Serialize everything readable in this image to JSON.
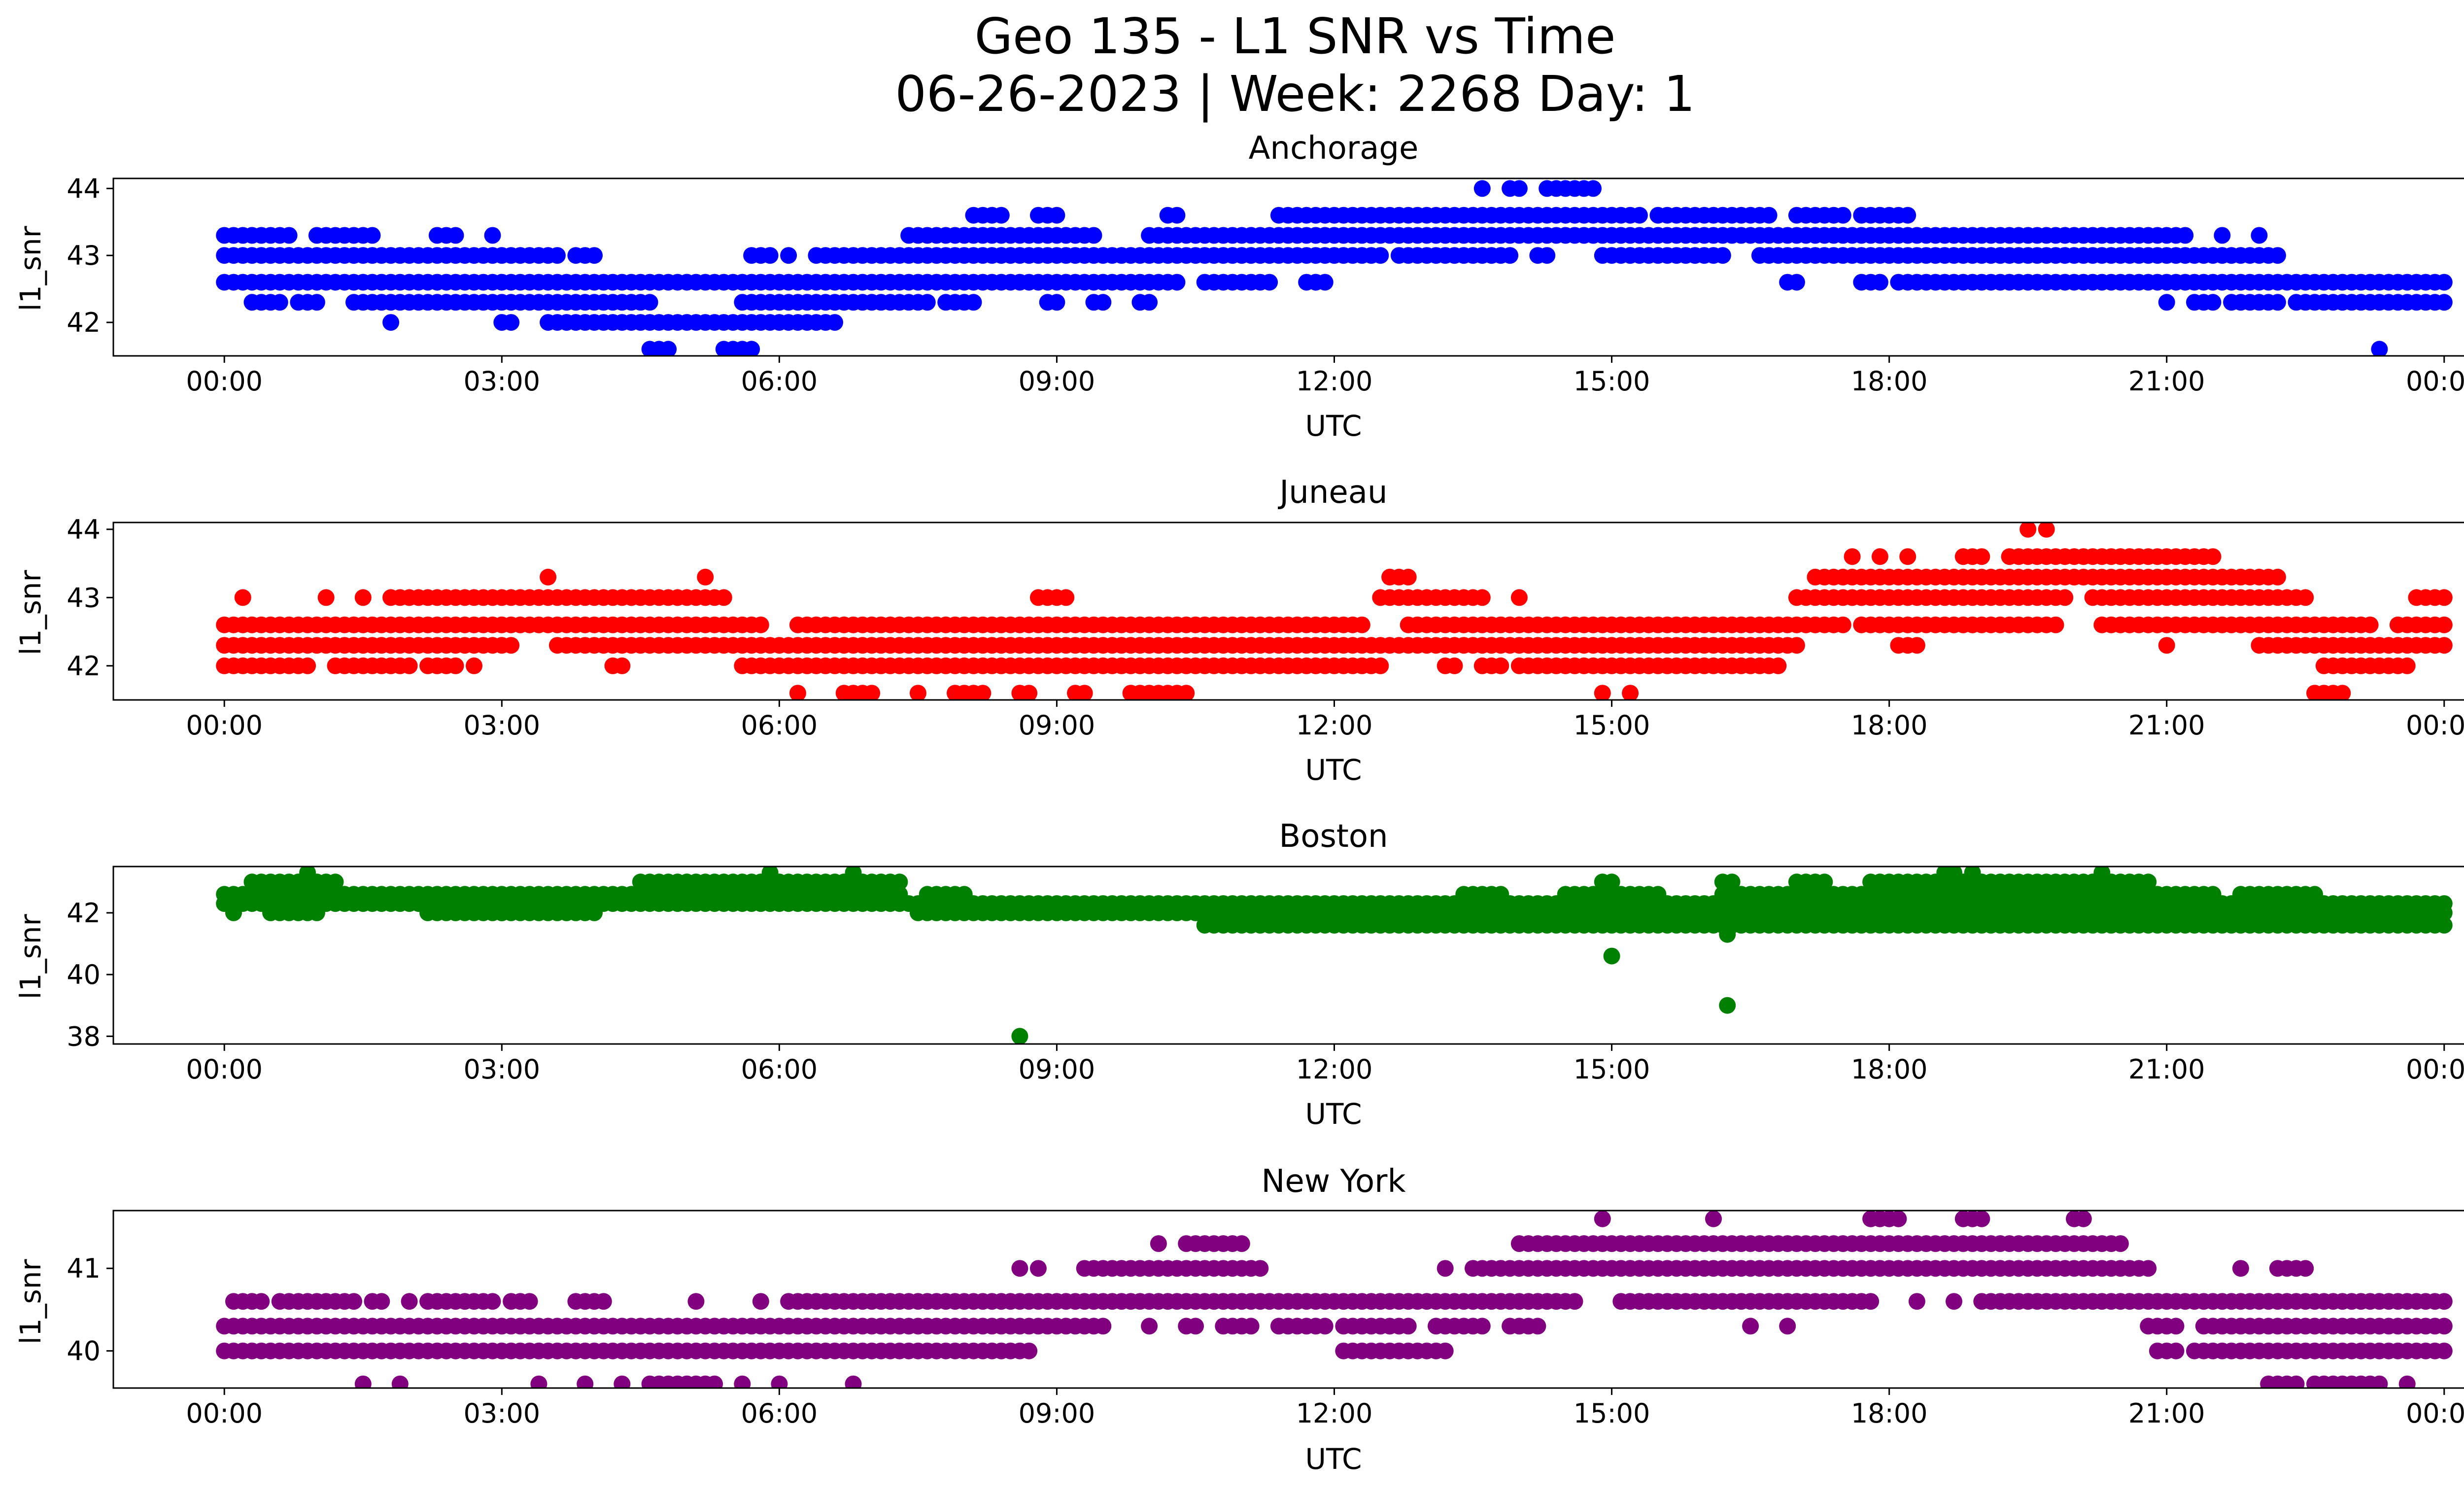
{
  "figure": {
    "title_line1": "Geo 135 - L1 SNR vs Time",
    "title_line2": "06-26-2023 | Week: 2268 Day: 1"
  },
  "chart_data": [
    {
      "type": "scatter",
      "title": "Anchorage",
      "xlabel": "UTC",
      "ylabel": "l1_snr",
      "color": "#0000ff",
      "x_ticks": [
        "00:00",
        "03:00",
        "06:00",
        "09:00",
        "12:00",
        "15:00",
        "18:00",
        "21:00",
        "00:00"
      ],
      "xlim_hours": [
        -1.2,
        25.2
      ],
      "y_ticks": [
        42,
        43,
        44
      ],
      "ylim": [
        41.5,
        44.15
      ],
      "levels": [
        {
          "y": 41.6,
          "ranges": [
            [
              4.6,
              4.8
            ],
            [
              5.4,
              5.7
            ],
            [
              23.3,
              23.3
            ]
          ]
        },
        {
          "y": 42.0,
          "ranges": [
            [
              1.8,
              1.8
            ],
            [
              3.0,
              3.1
            ],
            [
              3.5,
              6.6
            ]
          ]
        },
        {
          "y": 42.3,
          "ranges": [
            [
              0.3,
              0.6
            ],
            [
              0.8,
              1.0
            ],
            [
              1.4,
              4.6
            ],
            [
              5.6,
              7.6
            ],
            [
              7.8,
              8.1
            ],
            [
              8.9,
              9.0
            ],
            [
              9.4,
              9.5
            ],
            [
              9.9,
              10.0
            ],
            [
              21.0,
              21.0
            ],
            [
              21.3,
              21.5
            ],
            [
              21.7,
              22.2
            ],
            [
              22.4,
              24.0
            ]
          ]
        },
        {
          "y": 42.6,
          "ranges": [
            [
              0.0,
              10.3
            ],
            [
              10.6,
              11.3
            ],
            [
              11.7,
              11.9
            ],
            [
              16.9,
              17.0
            ],
            [
              17.7,
              17.9
            ],
            [
              18.1,
              24.0
            ]
          ]
        },
        {
          "y": 43.0,
          "ranges": [
            [
              0.0,
              3.6
            ],
            [
              3.8,
              4.0
            ],
            [
              5.7,
              5.9
            ],
            [
              6.1,
              6.1
            ],
            [
              6.4,
              12.5
            ],
            [
              12.7,
              13.4
            ],
            [
              13.5,
              13.9
            ],
            [
              14.2,
              14.3
            ],
            [
              14.9,
              16.2
            ],
            [
              16.6,
              22.2
            ]
          ]
        },
        {
          "y": 43.3,
          "ranges": [
            [
              0.0,
              0.7
            ],
            [
              1.0,
              1.3
            ],
            [
              1.4,
              1.6
            ],
            [
              2.3,
              2.5
            ],
            [
              2.9,
              2.9
            ],
            [
              7.4,
              9.4
            ],
            [
              10.0,
              21.2
            ],
            [
              21.6,
              21.6
            ],
            [
              22.0,
              22.0
            ]
          ]
        },
        {
          "y": 43.6,
          "ranges": [
            [
              8.1,
              8.4
            ],
            [
              8.8,
              9.0
            ],
            [
              10.2,
              10.3
            ],
            [
              11.4,
              15.3
            ],
            [
              15.5,
              16.7
            ],
            [
              17.0,
              17.5
            ],
            [
              17.7,
              17.9
            ],
            [
              18.0,
              18.2
            ]
          ]
        },
        {
          "y": 44.0,
          "ranges": [
            [
              13.6,
              13.6
            ],
            [
              13.9,
              14.0
            ],
            [
              14.3,
              14.8
            ]
          ]
        }
      ]
    },
    {
      "type": "scatter",
      "title": "Juneau",
      "xlabel": "UTC",
      "ylabel": "l1_snr",
      "color": "#ff0000",
      "x_ticks": [
        "00:00",
        "03:00",
        "06:00",
        "09:00",
        "12:00",
        "15:00",
        "18:00",
        "21:00",
        "00:00"
      ],
      "xlim_hours": [
        -1.2,
        25.2
      ],
      "y_ticks": [
        42,
        43,
        44
      ],
      "ylim": [
        41.5,
        44.1
      ],
      "levels": [
        {
          "y": 41.6,
          "ranges": [
            [
              6.2,
              6.2
            ],
            [
              6.7,
              7.0
            ],
            [
              7.5,
              7.5
            ],
            [
              7.9,
              8.2
            ],
            [
              8.6,
              8.7
            ],
            [
              9.2,
              9.3
            ],
            [
              9.8,
              10.4
            ],
            [
              14.9,
              14.9
            ],
            [
              15.2,
              15.2
            ],
            [
              22.6,
              22.9
            ]
          ]
        },
        {
          "y": 42.0,
          "ranges": [
            [
              0.0,
              0.9
            ],
            [
              1.2,
              2.0
            ],
            [
              2.2,
              2.4
            ],
            [
              2.5,
              2.5
            ],
            [
              2.7,
              2.7
            ],
            [
              4.2,
              4.3
            ],
            [
              5.6,
              12.5
            ],
            [
              13.2,
              13.3
            ],
            [
              13.6,
              13.8
            ],
            [
              14.0,
              16.8
            ],
            [
              22.7,
              23.6
            ]
          ]
        },
        {
          "y": 42.3,
          "ranges": [
            [
              0.0,
              3.1
            ],
            [
              3.6,
              12.7
            ],
            [
              12.8,
              17.0
            ],
            [
              18.1,
              18.3
            ],
            [
              21.0,
              21.0
            ],
            [
              22.0,
              24.0
            ]
          ]
        },
        {
          "y": 42.6,
          "ranges": [
            [
              0.0,
              1.4
            ],
            [
              1.4,
              5.8
            ],
            [
              6.2,
              6.5
            ],
            [
              6.6,
              10.8
            ],
            [
              10.9,
              12.3
            ],
            [
              12.8,
              17.5
            ],
            [
              17.7,
              19.8
            ],
            [
              20.3,
              23.2
            ],
            [
              23.5,
              24.0
            ]
          ]
        },
        {
          "y": 43.0,
          "ranges": [
            [
              0.2,
              0.2
            ],
            [
              1.1,
              1.1
            ],
            [
              1.5,
              1.5
            ],
            [
              1.8,
              2.5
            ],
            [
              2.6,
              5.4
            ],
            [
              8.8,
              9.1
            ],
            [
              12.5,
              13.6
            ],
            [
              14.0,
              14.0
            ],
            [
              17.0,
              19.9
            ],
            [
              20.2,
              22.5
            ],
            [
              23.7,
              24.0
            ]
          ]
        },
        {
          "y": 43.3,
          "ranges": [
            [
              3.5,
              3.5
            ],
            [
              5.2,
              5.2
            ],
            [
              12.6,
              12.8
            ],
            [
              17.2,
              22.2
            ]
          ]
        },
        {
          "y": 43.6,
          "ranges": [
            [
              17.6,
              17.6
            ],
            [
              17.9,
              17.9
            ],
            [
              18.2,
              18.2
            ],
            [
              18.8,
              19.0
            ],
            [
              19.3,
              21.5
            ]
          ]
        },
        {
          "y": 44.0,
          "ranges": [
            [
              19.5,
              19.5
            ],
            [
              19.7,
              19.7
            ]
          ]
        }
      ]
    },
    {
      "type": "scatter",
      "title": "Boston",
      "xlabel": "UTC",
      "ylabel": "l1_snr",
      "color": "#008000",
      "x_ticks": [
        "00:00",
        "03:00",
        "06:00",
        "09:00",
        "12:00",
        "15:00",
        "18:00",
        "21:00",
        "00:00"
      ],
      "xlim_hours": [
        -1.2,
        25.2
      ],
      "y_ticks": [
        38,
        40,
        42
      ],
      "ylim": [
        37.75,
        43.5
      ],
      "levels": [
        {
          "y": 41.6,
          "ranges": [
            [
              10.6,
              24.0
            ]
          ]
        },
        {
          "y": 42.0,
          "ranges": [
            [
              0.1,
              0.1
            ],
            [
              0.5,
              1.0
            ],
            [
              2.2,
              3.0
            ],
            [
              3.0,
              4.0
            ],
            [
              7.5,
              24.0
            ]
          ]
        },
        {
          "y": 42.3,
          "ranges": [
            [
              0.0,
              24.0
            ]
          ]
        },
        {
          "y": 42.6,
          "ranges": [
            [
              0.0,
              7.3
            ],
            [
              7.6,
              8.0
            ],
            [
              13.4,
              13.8
            ],
            [
              14.5,
              15.5
            ],
            [
              16.2,
              21.5
            ],
            [
              21.8,
              22.6
            ]
          ]
        },
        {
          "y": 43.0,
          "ranges": [
            [
              0.3,
              1.2
            ],
            [
              4.5,
              7.3
            ],
            [
              14.9,
              15.0
            ],
            [
              16.2,
              16.3
            ],
            [
              17.0,
              17.3
            ],
            [
              17.8,
              20.8
            ]
          ]
        },
        {
          "y": 43.3,
          "ranges": [
            [
              0.9,
              0.9
            ],
            [
              5.9,
              5.9
            ],
            [
              6.8,
              6.8
            ],
            [
              18.6,
              18.7
            ],
            [
              18.9,
              18.9
            ],
            [
              20.3,
              20.3
            ]
          ]
        }
      ],
      "outliers": [
        {
          "x_hours": 8.6,
          "y": 38.0
        },
        {
          "x_hours": 15.0,
          "y": 40.6
        },
        {
          "x_hours": 16.25,
          "y": 41.3
        },
        {
          "x_hours": 16.25,
          "y": 39.0
        }
      ]
    },
    {
      "type": "scatter",
      "title": "New York",
      "xlabel": "UTC",
      "ylabel": "l1_snr",
      "color": "#800080",
      "x_ticks": [
        "00:00",
        "03:00",
        "06:00",
        "09:00",
        "12:00",
        "15:00",
        "18:00",
        "21:00",
        "00:00"
      ],
      "xlim_hours": [
        -1.2,
        25.2
      ],
      "y_ticks": [
        40,
        41
      ],
      "ylim": [
        39.55,
        41.7
      ],
      "levels": [
        {
          "y": 39.6,
          "ranges": [
            [
              1.5,
              1.5
            ],
            [
              1.9,
              1.9
            ],
            [
              3.4,
              3.4
            ],
            [
              3.9,
              3.9
            ],
            [
              4.3,
              4.3
            ],
            [
              4.6,
              5.3
            ],
            [
              5.6,
              5.6
            ],
            [
              6.0,
              6.0
            ],
            [
              6.8,
              6.8
            ],
            [
              22.1,
              22.4
            ],
            [
              22.6,
              23.3
            ],
            [
              23.6,
              23.6
            ]
          ]
        },
        {
          "y": 40.0,
          "ranges": [
            [
              0.0,
              8.7
            ],
            [
              12.1,
              13.2
            ],
            [
              20.9,
              21.1
            ],
            [
              21.3,
              24.0
            ]
          ]
        },
        {
          "y": 40.3,
          "ranges": [
            [
              0.0,
              9.5
            ],
            [
              10.0,
              10.0
            ],
            [
              10.4,
              10.5
            ],
            [
              10.8,
              11.1
            ],
            [
              11.4,
              11.9
            ],
            [
              12.1,
              12.8
            ],
            [
              13.1,
              13.6
            ],
            [
              13.9,
              14.2
            ],
            [
              16.5,
              16.5
            ],
            [
              16.9,
              16.9
            ],
            [
              20.8,
              21.1
            ],
            [
              21.4,
              24.0
            ]
          ]
        },
        {
          "y": 40.6,
          "ranges": [
            [
              0.1,
              0.4
            ],
            [
              0.6,
              1.4
            ],
            [
              1.6,
              1.7
            ],
            [
              2.0,
              2.0
            ],
            [
              2.2,
              2.9
            ],
            [
              3.1,
              3.3
            ],
            [
              3.8,
              4.1
            ],
            [
              5.1,
              5.1
            ],
            [
              5.8,
              5.8
            ],
            [
              6.1,
              14.6
            ],
            [
              15.1,
              17.8
            ],
            [
              18.3,
              18.3
            ],
            [
              18.7,
              18.7
            ],
            [
              19.0,
              24.0
            ]
          ]
        },
        {
          "y": 41.0,
          "ranges": [
            [
              8.6,
              8.6
            ],
            [
              8.8,
              8.8
            ],
            [
              9.3,
              11.2
            ],
            [
              13.2,
              13.2
            ],
            [
              13.5,
              20.8
            ],
            [
              21.8,
              21.8
            ],
            [
              22.2,
              22.5
            ]
          ]
        },
        {
          "y": 41.3,
          "ranges": [
            [
              10.1,
              10.1
            ],
            [
              10.4,
              11.0
            ],
            [
              14.0,
              20.5
            ]
          ]
        },
        {
          "y": 41.6,
          "ranges": [
            [
              14.9,
              14.9
            ],
            [
              16.1,
              16.1
            ],
            [
              17.8,
              18.1
            ],
            [
              18.8,
              19.0
            ],
            [
              20.0,
              20.1
            ]
          ]
        }
      ]
    }
  ]
}
